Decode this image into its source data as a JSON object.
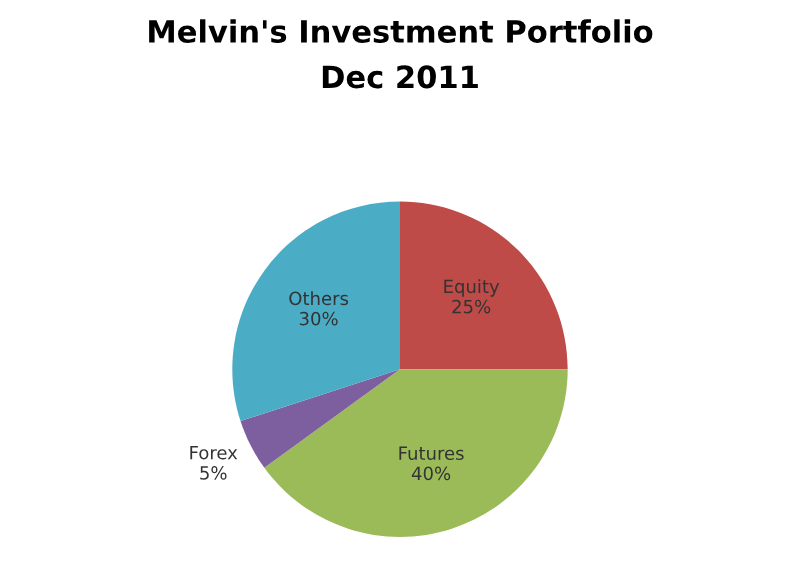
{
  "chart_data": {
    "type": "pie",
    "title": "Melvin's Investment Portfolio",
    "subtitle": "Dec 2011",
    "categories": [
      "Equity",
      "Futures",
      "Forex",
      "Others"
    ],
    "values": [
      25,
      40,
      5,
      30
    ],
    "value_labels": [
      "25%",
      "40%",
      "5%",
      "30%"
    ],
    "colors": [
      "#be4b48",
      "#9bbb59",
      "#7d5fa0",
      "#4bacc6"
    ],
    "legend": false
  }
}
